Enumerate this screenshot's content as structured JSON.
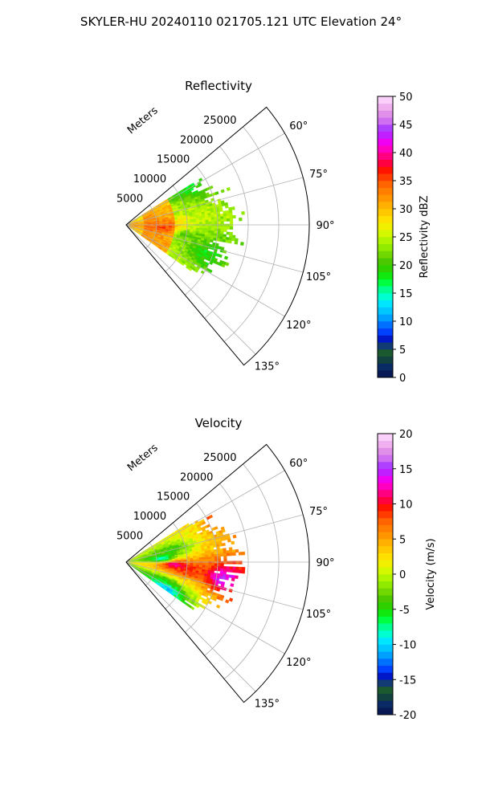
{
  "figure": {
    "suptitle": "SKYLER-HU  20240110  021705.121 UTC Elevation 24°"
  },
  "colormap": [
    "#081a55",
    "#0a2a66",
    "#12423f",
    "#1b5a2f",
    "#123b74",
    "#0018c8",
    "#0040ff",
    "#0070ff",
    "#00a0ff",
    "#00c8ff",
    "#00e6ff",
    "#00ffd0",
    "#00ff90",
    "#00ff40",
    "#10e810",
    "#2ed000",
    "#4cc800",
    "#70d800",
    "#90ea00",
    "#b0f400",
    "#d4f800",
    "#f0f000",
    "#ffe000",
    "#ffc800",
    "#ffb000",
    "#ff9600",
    "#ff7e00",
    "#ff6400",
    "#ff3c00",
    "#ff1400",
    "#ff0040",
    "#ff0080",
    "#ff00c0",
    "#f000f0",
    "#c020ff",
    "#b040ff",
    "#d070f0",
    "#e090e8",
    "#f0b0f0",
    "#fad0fa"
  ],
  "chart_data": [
    {
      "type": "heatmap",
      "projection": "polar-sector",
      "title": "Reflectivity",
      "radial_label": "Meters",
      "radial_ticks": [
        "5000",
        "10000",
        "15000",
        "20000",
        "25000"
      ],
      "radial_range": [
        0,
        30000
      ],
      "angle_range_deg": [
        50,
        140
      ],
      "angle_ticks": [
        "60°",
        "75°",
        "90°",
        "105°",
        "120°",
        "135°"
      ],
      "angle_tick_values": [
        60,
        75,
        90,
        105,
        120,
        135
      ],
      "grid": true,
      "colorbar": {
        "label": "Reflectivity dBZ",
        "range": [
          0,
          50
        ],
        "ticks": [
          "0",
          "5",
          "10",
          "15",
          "20",
          "25",
          "30",
          "35",
          "40",
          "45",
          "50"
        ],
        "tick_values": [
          0,
          5,
          10,
          15,
          20,
          25,
          30,
          35,
          40,
          45,
          50
        ]
      },
      "field": {
        "angle_range_deg": [
          58,
          125
        ],
        "max_range_m": 19000,
        "near_value": 34,
        "far_value": 17,
        "hot_band_range_m": [
          3000,
          8000
        ],
        "hot_band_value": 36,
        "values": [
          {
            "angle": 60,
            "range": 12000,
            "value": 18
          },
          {
            "angle": 75,
            "range": 8000,
            "value": 24
          },
          {
            "angle": 90,
            "range": 4000,
            "value": 30
          },
          {
            "angle": 95,
            "range": 6000,
            "value": 36
          },
          {
            "angle": 100,
            "range": 10000,
            "value": 20
          },
          {
            "angle": 110,
            "range": 14000,
            "value": 18
          },
          {
            "angle": 120,
            "range": 6000,
            "value": 26
          }
        ]
      }
    },
    {
      "type": "heatmap",
      "projection": "polar-sector",
      "title": "Velocity",
      "radial_label": "Meters",
      "radial_ticks": [
        "5000",
        "10000",
        "15000",
        "20000",
        "25000"
      ],
      "radial_range": [
        0,
        30000
      ],
      "angle_range_deg": [
        50,
        140
      ],
      "angle_ticks": [
        "60°",
        "75°",
        "90°",
        "105°",
        "120°",
        "135°"
      ],
      "angle_tick_values": [
        60,
        75,
        90,
        105,
        120,
        135
      ],
      "grid": true,
      "colorbar": {
        "label": "Velocity (m/s)",
        "range": [
          -20,
          20
        ],
        "ticks": [
          "-20",
          "-15",
          "-10",
          "-5",
          "0",
          "5",
          "10",
          "15",
          "20"
        ],
        "tick_values": [
          -20,
          -15,
          -10,
          -5,
          0,
          5,
          10,
          15,
          20
        ]
      },
      "field": {
        "angle_range_deg": [
          58,
          125
        ],
        "max_range_m": 19000,
        "values": [
          {
            "angle": 62,
            "range": 12000,
            "value": 2
          },
          {
            "angle": 62,
            "range": 17000,
            "value": 10
          },
          {
            "angle": 75,
            "range": 8000,
            "value": -5
          },
          {
            "angle": 85,
            "range": 6000,
            "value": -11
          },
          {
            "angle": 93,
            "range": 8000,
            "value": 15
          },
          {
            "angle": 100,
            "range": 10000,
            "value": 10
          },
          {
            "angle": 100,
            "range": 16000,
            "value": 16
          },
          {
            "angle": 108,
            "range": 10000,
            "value": 3
          },
          {
            "angle": 115,
            "range": 8000,
            "value": -6
          },
          {
            "angle": 122,
            "range": 8000,
            "value": -12
          }
        ]
      }
    }
  ]
}
